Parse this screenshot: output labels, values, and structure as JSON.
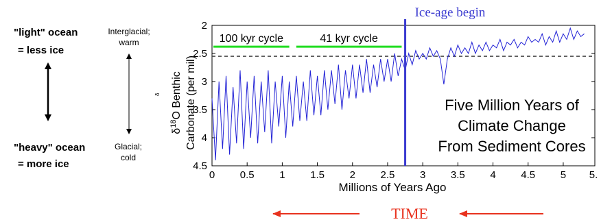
{
  "left_panel": {
    "light_ocean": "\"light\" ocean",
    "less_ice": "= less ice",
    "heavy_ocean": "\"heavy\" ocean",
    "more_ice": "= more ice",
    "interglacial": "Interglacial;",
    "warm": "warm",
    "glacial": "Glacial;",
    "cold": "cold",
    "stray_glyph": "δ"
  },
  "annotation": {
    "ice_age": "Ice-age begin",
    "time": "TIME",
    "title_lines": [
      "Five Million Years of",
      "Climate Change",
      "From Sediment Cores"
    ],
    "cycle_100": "100 kyr cycle",
    "cycle_41": "41 kyr cycle"
  },
  "colors": {
    "series": "#2323d6",
    "ice_age_line": "#3b3bd0",
    "cycle_bar": "#22dd22",
    "time_arrow": "#e8321e",
    "time_text": "#e8321e"
  },
  "chart_data": {
    "type": "line",
    "ylabel_line1_prefix": "δ",
    "ylabel_sup": "18",
    "ylabel_line1_suffix": "O Benthic",
    "ylabel_line2": "Carbonate (per mil)",
    "xlabel": "Millions of Years Ago",
    "xlim": [
      0,
      5.45
    ],
    "ylim": [
      4.5,
      2
    ],
    "y_inverted": true,
    "xticks": [
      0,
      0.5,
      1,
      1.5,
      2,
      2.5,
      3,
      3.5,
      4,
      4.5,
      5
    ],
    "xtick_labels": [
      "0",
      "0.5",
      "1",
      "1.5",
      "2",
      "2.5",
      "3",
      "3.5",
      "4",
      "4.5",
      "5"
    ],
    "last_xtick_label": "5.",
    "yticks": [
      2,
      2.5,
      3,
      3.5,
      4,
      4.5
    ],
    "ytick_labels": [
      "2",
      "2.5",
      "3",
      "3.5",
      "4",
      "4.5"
    ],
    "ice_age_x": 2.75,
    "reference_line_y": 2.55,
    "cycle_segments": [
      {
        "label": "100 kyr cycle",
        "x": [
          0.02,
          1.1
        ],
        "y": 2.38
      },
      {
        "label": "41 kyr cycle",
        "x": [
          1.2,
          2.7
        ],
        "y": 2.38
      }
    ],
    "series": [
      {
        "x": [
          0.0,
          0.05,
          0.1,
          0.15,
          0.2,
          0.25,
          0.3,
          0.35,
          0.4,
          0.45,
          0.5,
          0.55,
          0.6,
          0.65,
          0.7,
          0.75,
          0.8,
          0.85,
          0.9,
          0.95,
          1.0,
          1.05,
          1.1,
          1.15,
          1.2,
          1.25,
          1.3,
          1.35,
          1.4,
          1.45,
          1.5,
          1.55,
          1.6,
          1.65,
          1.7,
          1.75,
          1.8,
          1.85,
          1.9,
          1.95,
          2.0,
          2.05,
          2.1,
          2.15,
          2.2,
          2.25,
          2.3,
          2.35,
          2.4,
          2.45,
          2.5,
          2.55,
          2.6,
          2.65,
          2.7,
          2.75,
          2.8,
          2.85,
          2.9,
          2.95,
          3.0,
          3.05,
          3.1,
          3.15,
          3.2,
          3.25,
          3.3,
          3.35,
          3.4,
          3.45,
          3.5,
          3.55,
          3.6,
          3.65,
          3.7,
          3.75,
          3.8,
          3.85,
          3.9,
          3.95,
          4.0,
          4.05,
          4.1,
          4.15,
          4.2,
          4.25,
          4.3,
          4.35,
          4.4,
          4.45,
          4.5,
          4.55,
          4.6,
          4.65,
          4.7,
          4.75,
          4.8,
          4.85,
          4.9,
          4.95,
          5.0,
          5.05,
          5.1,
          5.15,
          5.2,
          5.25,
          5.3
        ],
        "values": [
          3.3,
          4.4,
          3.0,
          4.2,
          2.9,
          4.3,
          3.1,
          4.1,
          2.8,
          4.2,
          3.0,
          4.0,
          2.9,
          4.1,
          3.0,
          3.9,
          2.8,
          4.1,
          3.0,
          3.8,
          2.9,
          4.0,
          3.0,
          3.8,
          2.9,
          3.7,
          3.0,
          3.7,
          2.8,
          3.6,
          2.9,
          3.6,
          2.8,
          3.5,
          2.8,
          3.4,
          2.7,
          3.5,
          2.8,
          3.3,
          2.7,
          3.3,
          2.7,
          3.2,
          2.6,
          3.2,
          2.7,
          3.1,
          2.6,
          3.0,
          2.6,
          3.0,
          2.5,
          2.9,
          2.6,
          2.8,
          2.5,
          2.7,
          2.45,
          2.6,
          2.5,
          2.6,
          2.4,
          2.55,
          2.45,
          2.6,
          3.05,
          2.6,
          2.4,
          2.55,
          2.35,
          2.5,
          2.4,
          2.5,
          2.3,
          2.5,
          2.35,
          2.45,
          2.3,
          2.45,
          2.35,
          2.4,
          2.25,
          2.45,
          2.3,
          2.35,
          2.25,
          2.4,
          2.3,
          2.35,
          2.2,
          2.3,
          2.25,
          2.3,
          2.15,
          2.35,
          2.2,
          2.3,
          2.1,
          2.3,
          2.15,
          2.25,
          2.05,
          2.25,
          2.1,
          2.2,
          2.15
        ]
      }
    ]
  }
}
